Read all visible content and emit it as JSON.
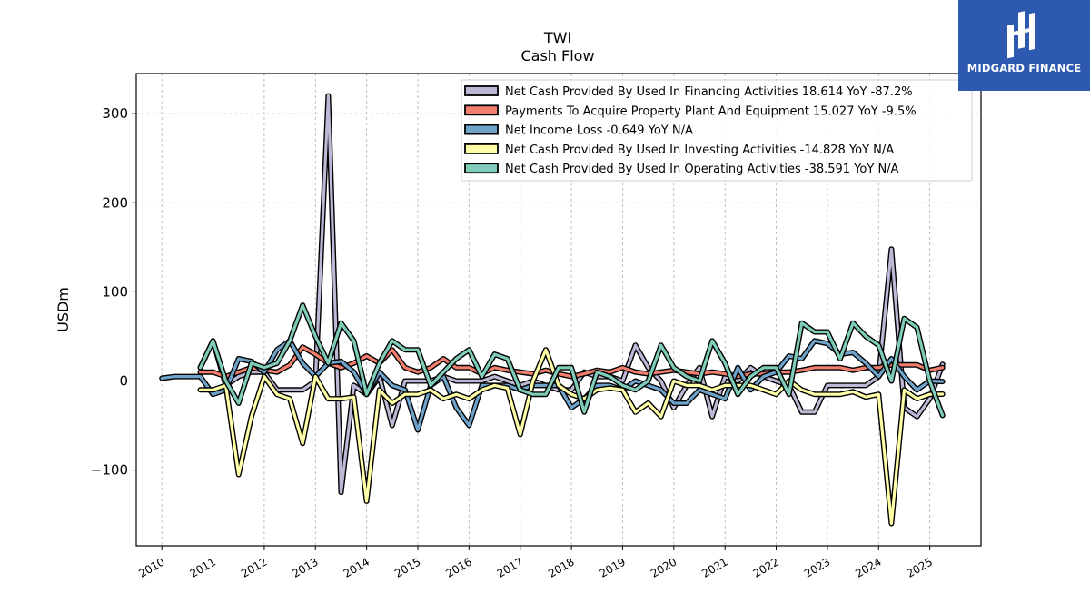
{
  "chart_data": {
    "type": "line",
    "title": "TWI",
    "subtitle": "Cash Flow",
    "ylabel": "USDm",
    "xlabel": "",
    "xlim": [
      2009.5,
      2026.0
    ],
    "ylim": [
      -185,
      345
    ],
    "yticks": [
      -100,
      0,
      100,
      200,
      300
    ],
    "ytick_labels": [
      "−100",
      "0",
      "100",
      "200",
      "300"
    ],
    "xticks": [
      2010,
      2011,
      2012,
      2013,
      2014,
      2015,
      2016,
      2017,
      2018,
      2019,
      2020,
      2021,
      2022,
      2023,
      2024,
      2025
    ],
    "xtick_labels": [
      "2010",
      "2011",
      "2012",
      "2013",
      "2014",
      "2015",
      "2016",
      "2017",
      "2018",
      "2019",
      "2020",
      "2021",
      "2022",
      "2023",
      "2024",
      "2025"
    ],
    "grid": true,
    "legend_position": "top-right",
    "series": [
      {
        "name": "Net Cash Provided By Used In Financing Activities",
        "legend_label": "Net Cash Provided By Used In Financing Activities  18.614 YoY -87.2%",
        "color": "#bcb8d6",
        "x": [
          2010.75,
          2011.0,
          2011.25,
          2011.5,
          2011.75,
          2012.0,
          2012.25,
          2012.5,
          2012.75,
          2013.0,
          2013.25,
          2013.5,
          2013.75,
          2014.0,
          2014.25,
          2014.5,
          2014.75,
          2015.0,
          2015.25,
          2015.5,
          2015.75,
          2016.0,
          2016.25,
          2016.5,
          2016.75,
          2017.0,
          2017.25,
          2017.5,
          2017.75,
          2018.0,
          2018.25,
          2018.5,
          2018.75,
          2019.0,
          2019.25,
          2019.5,
          2019.75,
          2020.0,
          2020.25,
          2020.5,
          2020.75,
          2021.0,
          2021.25,
          2021.5,
          2021.75,
          2022.0,
          2022.25,
          2022.5,
          2022.75,
          2023.0,
          2023.25,
          2023.5,
          2023.75,
          2024.0,
          2024.25,
          2024.5,
          2024.75,
          2025.0,
          2025.25
        ],
        "values": [
          15,
          45,
          -5,
          5,
          10,
          10,
          -10,
          -10,
          -10,
          0,
          320,
          -125,
          -5,
          -15,
          5,
          -50,
          0,
          0,
          0,
          5,
          0,
          0,
          0,
          5,
          0,
          -5,
          0,
          -5,
          -10,
          -10,
          10,
          5,
          5,
          0,
          40,
          15,
          0,
          -30,
          -5,
          15,
          -40,
          5,
          0,
          15,
          5,
          0,
          -5,
          -35,
          -35,
          -5,
          -5,
          -5,
          -5,
          5,
          148,
          -30,
          -40,
          -20,
          18.614
        ]
      },
      {
        "name": "Payments To Acquire Property Plant And Equipment",
        "legend_label": "Payments To Acquire Property Plant And Equipment  15.027 YoY -9.5%",
        "color": "#f27f6e",
        "x": [
          2010.75,
          2011.0,
          2011.25,
          2011.5,
          2011.75,
          2012.0,
          2012.25,
          2012.5,
          2012.75,
          2013.0,
          2013.25,
          2013.5,
          2013.75,
          2014.0,
          2014.25,
          2014.5,
          2014.75,
          2015.0,
          2015.25,
          2015.5,
          2015.75,
          2016.0,
          2016.25,
          2016.5,
          2016.75,
          2017.0,
          2017.25,
          2017.5,
          2017.75,
          2018.0,
          2018.25,
          2018.5,
          2018.75,
          2019.0,
          2019.25,
          2019.5,
          2019.75,
          2020.0,
          2020.25,
          2020.5,
          2020.75,
          2021.0,
          2021.25,
          2021.5,
          2021.75,
          2022.0,
          2022.25,
          2022.5,
          2022.75,
          2023.0,
          2023.25,
          2023.5,
          2023.75,
          2024.0,
          2024.25,
          2024.5,
          2024.75,
          2025.0,
          2025.25
        ],
        "values": [
          10,
          10,
          5,
          10,
          15,
          12,
          10,
          18,
          38,
          30,
          20,
          15,
          20,
          28,
          20,
          35,
          15,
          10,
          15,
          25,
          15,
          15,
          8,
          15,
          12,
          10,
          8,
          12,
          8,
          5,
          8,
          12,
          10,
          15,
          10,
          8,
          10,
          12,
          10,
          8,
          10,
          8,
          5,
          8,
          8,
          10,
          10,
          12,
          15,
          15,
          15,
          12,
          15,
          15,
          18,
          18,
          18,
          12,
          15.027
        ]
      },
      {
        "name": "Net Income Loss",
        "legend_label": "Net Income Loss  -0.649 YoY N/A",
        "color": "#6fa3c9",
        "x": [
          2010.0,
          2010.25,
          2010.5,
          2010.75,
          2011.0,
          2011.25,
          2011.5,
          2011.75,
          2012.0,
          2012.25,
          2012.5,
          2012.75,
          2013.0,
          2013.25,
          2013.5,
          2013.75,
          2014.0,
          2014.25,
          2014.5,
          2014.75,
          2015.0,
          2015.25,
          2015.5,
          2015.75,
          2016.0,
          2016.25,
          2016.5,
          2016.75,
          2017.0,
          2017.25,
          2017.5,
          2017.75,
          2018.0,
          2018.25,
          2018.5,
          2018.75,
          2019.0,
          2019.25,
          2019.5,
          2019.75,
          2020.0,
          2020.25,
          2020.5,
          2020.75,
          2021.0,
          2021.25,
          2021.5,
          2021.75,
          2022.0,
          2022.25,
          2022.5,
          2022.75,
          2023.0,
          2023.25,
          2023.5,
          2023.75,
          2024.0,
          2024.25,
          2024.5,
          2024.75,
          2025.0,
          2025.25
        ],
        "values": [
          3,
          5,
          5,
          5,
          -15,
          -10,
          25,
          22,
          10,
          35,
          45,
          20,
          5,
          20,
          22,
          10,
          -15,
          10,
          -5,
          -10,
          -55,
          -5,
          5,
          -30,
          -50,
          -5,
          -5,
          -5,
          -10,
          -5,
          -5,
          -5,
          -30,
          -20,
          -5,
          -5,
          -10,
          0,
          -5,
          -10,
          -25,
          -25,
          -10,
          -15,
          -20,
          15,
          -10,
          5,
          10,
          28,
          25,
          45,
          42,
          30,
          32,
          20,
          5,
          25,
          5,
          -10,
          0,
          -0.649
        ]
      },
      {
        "name": "Net Cash Provided By Used In Investing Activities",
        "legend_label": "Net Cash Provided By Used In Investing Activities  -14.828 YoY N/A",
        "color": "#ffffa8",
        "x": [
          2010.75,
          2011.0,
          2011.25,
          2011.5,
          2011.75,
          2012.0,
          2012.25,
          2012.5,
          2012.75,
          2013.0,
          2013.25,
          2013.5,
          2013.75,
          2014.0,
          2014.25,
          2014.5,
          2014.75,
          2015.0,
          2015.25,
          2015.5,
          2015.75,
          2016.0,
          2016.25,
          2016.5,
          2016.75,
          2017.0,
          2017.25,
          2017.5,
          2017.75,
          2018.0,
          2018.25,
          2018.5,
          2018.75,
          2019.0,
          2019.25,
          2019.5,
          2019.75,
          2020.0,
          2020.25,
          2020.5,
          2020.75,
          2021.0,
          2021.25,
          2021.5,
          2021.75,
          2022.0,
          2022.25,
          2022.5,
          2022.75,
          2023.0,
          2023.25,
          2023.5,
          2023.75,
          2024.0,
          2024.25,
          2024.5,
          2024.75,
          2025.0,
          2025.25
        ],
        "values": [
          -10,
          -10,
          -5,
          -105,
          -40,
          5,
          -15,
          -20,
          -70,
          5,
          -20,
          -20,
          -18,
          -135,
          -10,
          -25,
          -15,
          -15,
          -10,
          -20,
          -15,
          -20,
          -10,
          -5,
          -8,
          -60,
          0,
          35,
          -5,
          -15,
          -20,
          -10,
          -8,
          -10,
          -35,
          -25,
          -40,
          0,
          -5,
          -5,
          -10,
          -5,
          -5,
          -5,
          -10,
          -15,
          0,
          -10,
          -15,
          -15,
          -15,
          -12,
          -18,
          -15,
          -160,
          -10,
          -20,
          -15,
          -14.828
        ]
      },
      {
        "name": "Net Cash Provided By Used In Operating Activities",
        "legend_label": "Net Cash Provided By Used In Operating Activities  -38.591 YoY N/A",
        "color": "#7fcdb9",
        "x": [
          2010.75,
          2011.0,
          2011.25,
          2011.5,
          2011.75,
          2012.0,
          2012.25,
          2012.5,
          2012.75,
          2013.0,
          2013.25,
          2013.5,
          2013.75,
          2014.0,
          2014.25,
          2014.5,
          2014.75,
          2015.0,
          2015.25,
          2015.5,
          2015.75,
          2016.0,
          2016.25,
          2016.5,
          2016.75,
          2017.0,
          2017.25,
          2017.5,
          2017.75,
          2018.0,
          2018.25,
          2018.5,
          2018.75,
          2019.0,
          2019.25,
          2019.5,
          2019.75,
          2020.0,
          2020.25,
          2020.5,
          2020.75,
          2021.0,
          2021.25,
          2021.5,
          2021.75,
          2022.0,
          2022.25,
          2022.5,
          2022.75,
          2023.0,
          2023.25,
          2023.5,
          2023.75,
          2024.0,
          2024.25,
          2024.5,
          2024.75,
          2025.0,
          2025.25
        ],
        "values": [
          15,
          45,
          0,
          -25,
          20,
          15,
          20,
          45,
          85,
          50,
          20,
          65,
          45,
          -15,
          20,
          45,
          35,
          35,
          -5,
          10,
          25,
          35,
          5,
          30,
          25,
          -10,
          -15,
          -15,
          15,
          15,
          -35,
          10,
          5,
          -5,
          -10,
          0,
          40,
          15,
          5,
          0,
          45,
          20,
          -15,
          5,
          15,
          15,
          -15,
          65,
          55,
          55,
          25,
          65,
          50,
          40,
          0,
          70,
          60,
          0,
          -38.591
        ]
      }
    ]
  },
  "logo": {
    "text": "MIDGARD FINANCE",
    "background": "#2d59b0",
    "icon": "midgard-logo-icon"
  }
}
